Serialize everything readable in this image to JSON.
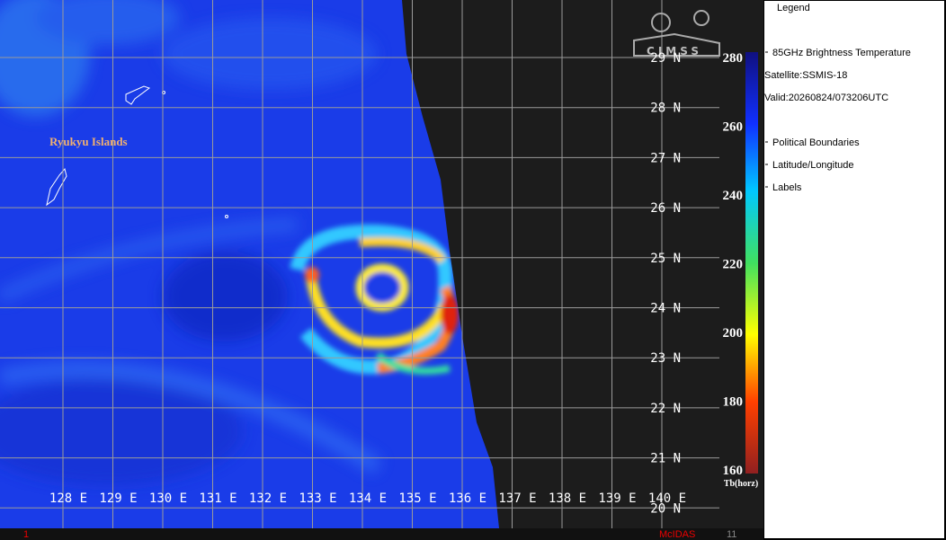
{
  "map": {
    "region_label": "Ryukyu Islands",
    "lat_labels": [
      "29 N",
      "28 N",
      "27 N",
      "26 N",
      "25 N",
      "24 N",
      "23 N",
      "22 N",
      "21 N",
      "20 N"
    ],
    "lon_labels": [
      "128 E",
      "129 E",
      "130 E",
      "131 E",
      "132 E",
      "133 E",
      "134 E",
      "135 E",
      "136 E",
      "137 E",
      "138 E",
      "139 E",
      "140 E"
    ],
    "logo": "CIMSS",
    "footer": {
      "left": "1",
      "center": "McIDAS",
      "right": "11"
    }
  },
  "legend": {
    "title": "Legend",
    "items": [
      "85GHz Brightness Temperature",
      "Satellite:SSMIS-18",
      "Valid:20260824/073206UTC",
      "Political Boundaries",
      "Latitude/Longitude",
      "Labels"
    ]
  },
  "colorbar": {
    "ticks": [
      280,
      260,
      240,
      220,
      200,
      180,
      160
    ],
    "label": "Tb(horz)"
  }
}
